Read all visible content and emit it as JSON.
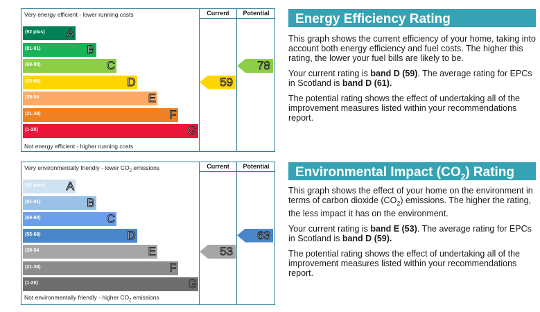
{
  "energy": {
    "chart": {
      "title": "Very energy efficient - lower running costs",
      "footer": "Not energy efficient - higher running costs",
      "col_current": "Current",
      "col_potential": "Potential",
      "bands": [
        {
          "range": "(92 plus)",
          "letter": "A",
          "color": "#008054"
        },
        {
          "range": "(81-91)",
          "letter": "B",
          "color": "#19b459"
        },
        {
          "range": "(69-80)",
          "letter": "C",
          "color": "#8dce46"
        },
        {
          "range": "(55-68)",
          "letter": "D",
          "color": "#ffd500"
        },
        {
          "range": "(39-54",
          "letter": "E",
          "color": "#fcaa65"
        },
        {
          "range": "(21-38)",
          "letter": "F",
          "color": "#ef8023"
        },
        {
          "range": "(1-20)",
          "letter": "G",
          "color": "#e9153b"
        }
      ],
      "current": {
        "value": "59",
        "band": "D",
        "color": "#ffd500"
      },
      "potential": {
        "value": "78",
        "band": "C",
        "color": "#8dce46"
      }
    },
    "panel": {
      "heading": "Energy Efficiency Rating",
      "p1": "This graph shows the current efficiency of your home, taking into account both energy efficiency and fuel costs. The higher this rating, the lower your fuel bills are likely to be.",
      "p2_a": "Your current rating is ",
      "p2_b": "band D (59)",
      "p2_c": ". The average rating for EPCs in Scotland is ",
      "p2_d": "band D (61).",
      "p3": "The potential rating shows the effect of undertaking all of the improvement measures listed within your recommendations report."
    }
  },
  "environment": {
    "chart": {
      "title_a": "Very environmentally friendly - lower CO",
      "title_sub": "2",
      "title_b": " emissions",
      "footer_a": "Not environmentally friendly - higher CO",
      "footer_sub": "2",
      "footer_b": " emissions",
      "col_current": "Current",
      "col_potential": "Potential",
      "bands": [
        {
          "range": "(92 plus)",
          "letter": "A",
          "color": "#cfe2f3"
        },
        {
          "range": "(81-91)",
          "letter": "B",
          "color": "#9bc2e6"
        },
        {
          "range": "(69-80)",
          "letter": "C",
          "color": "#6d9eeb"
        },
        {
          "range": "(55-68)",
          "letter": "D",
          "color": "#4a86c8"
        },
        {
          "range": "(39-54",
          "letter": "E",
          "color": "#a6a6a6"
        },
        {
          "range": "(21-38)",
          "letter": "F",
          "color": "#8c8c8c"
        },
        {
          "range": "(1-20)",
          "letter": "G",
          "color": "#6e6e6e"
        }
      ],
      "current": {
        "value": "53",
        "band": "E",
        "color": "#a6a6a6"
      },
      "potential": {
        "value": "63",
        "band": "D",
        "color": "#4a86c8"
      }
    },
    "panel": {
      "heading_a": "Environmental Impact (CO",
      "heading_sub": "2",
      "heading_b": ") Rating",
      "p1_a": "This graph shows the effect of your home on the environment in terms of carbon dioxide (CO",
      "p1_sub": "2",
      "p1_b": ") emissions. The higher the rating, the less impact it has on the environment.",
      "p2_a": "Your current rating is ",
      "p2_b": "band E (53)",
      "p2_c": ". The average rating for EPCs in Scotland is ",
      "p2_d": "band D (59).",
      "p3": "The potential rating shows the effect of undertaking all of the improvement measures listed within your recommendations report."
    }
  }
}
